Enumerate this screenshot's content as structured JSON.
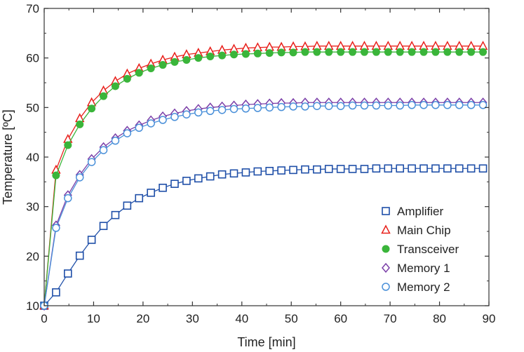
{
  "chart_data": {
    "type": "line",
    "title": "",
    "xlabel": "Time [min]",
    "ylabel": "Temperature [ºC]",
    "xlim": [
      0,
      90
    ],
    "ylim": [
      10,
      70
    ],
    "x_ticks": [
      "0",
      "10",
      "20",
      "30",
      "40",
      "50",
      "60",
      "70",
      "80",
      "90"
    ],
    "y_ticks": [
      "10",
      "20",
      "30",
      "40",
      "50",
      "60",
      "70"
    ],
    "grid": false,
    "legend_position": "bottom-right",
    "x": [
      0,
      2.4,
      4.8,
      7.2,
      9.6,
      12,
      14.4,
      16.8,
      19.2,
      21.6,
      24,
      26.4,
      28.8,
      31.2,
      33.6,
      36,
      38.4,
      40.8,
      43.2,
      45.6,
      48,
      50.4,
      52.8,
      55.2,
      57.6,
      60,
      62.4,
      64.8,
      67.2,
      69.6,
      72,
      74.4,
      76.8,
      79.2,
      81.6,
      84,
      86.4,
      88.8
    ],
    "series": [
      {
        "name": "Amplifier",
        "color": "#1f4fa8",
        "marker": "square",
        "values": [
          10,
          12.7,
          16.5,
          20.1,
          23.3,
          26.1,
          28.3,
          30.2,
          31.7,
          32.8,
          33.8,
          34.6,
          35.2,
          35.7,
          36.1,
          36.5,
          36.7,
          36.9,
          37.1,
          37.2,
          37.3,
          37.4,
          37.5,
          37.5,
          37.6,
          37.6,
          37.6,
          37.6,
          37.7,
          37.7,
          37.7,
          37.7,
          37.7,
          37.7,
          37.7,
          37.7,
          37.7,
          37.7
        ]
      },
      {
        "name": "Main Chip",
        "color": "#e8201b",
        "marker": "triangle",
        "values": [
          10,
          37.4,
          43.6,
          47.8,
          51.0,
          53.4,
          55.3,
          56.8,
          57.9,
          58.8,
          59.6,
          60.2,
          60.7,
          61.0,
          61.3,
          61.6,
          61.8,
          62.0,
          62.1,
          62.2,
          62.2,
          62.3,
          62.3,
          62.4,
          62.4,
          62.4,
          62.4,
          62.4,
          62.4,
          62.4,
          62.4,
          62.4,
          62.4,
          62.4,
          62.4,
          62.4,
          62.4,
          62.4
        ]
      },
      {
        "name": "Transceiver",
        "color": "#3ab53a",
        "marker": "circle-filled",
        "values": [
          10,
          36.3,
          42.4,
          46.6,
          49.8,
          52.3,
          54.3,
          55.8,
          57.0,
          57.9,
          58.6,
          59.2,
          59.6,
          60.0,
          60.3,
          60.5,
          60.7,
          60.8,
          60.9,
          61.0,
          61.1,
          61.1,
          61.2,
          61.2,
          61.2,
          61.2,
          61.2,
          61.2,
          61.2,
          61.2,
          61.2,
          61.2,
          61.2,
          61.2,
          61.2,
          61.2,
          61.2,
          61.2
        ]
      },
      {
        "name": "Memory 1",
        "color": "#7b3fa8",
        "marker": "diamond",
        "values": [
          10,
          26.2,
          32.3,
          36.4,
          39.6,
          42.0,
          43.8,
          45.3,
          46.4,
          47.4,
          48.2,
          48.8,
          49.3,
          49.7,
          50.0,
          50.2,
          50.4,
          50.6,
          50.7,
          50.8,
          50.9,
          50.9,
          51.0,
          51.0,
          51.0,
          51.0,
          51.0,
          51.0,
          51.0,
          51.0,
          51.0,
          51.0,
          51.0,
          51.0,
          51.0,
          51.0,
          51.0,
          51.0
        ]
      },
      {
        "name": "Memory 2",
        "color": "#4a90d9",
        "marker": "circle",
        "values": [
          10,
          25.7,
          31.7,
          35.9,
          39.0,
          41.4,
          43.3,
          44.8,
          45.9,
          46.8,
          47.5,
          48.1,
          48.6,
          49.0,
          49.3,
          49.5,
          49.7,
          49.8,
          49.9,
          50.0,
          50.1,
          50.2,
          50.2,
          50.3,
          50.3,
          50.3,
          50.4,
          50.4,
          50.4,
          50.4,
          50.4,
          50.5,
          50.5,
          50.5,
          50.5,
          50.5,
          50.5,
          50.5
        ]
      }
    ]
  }
}
